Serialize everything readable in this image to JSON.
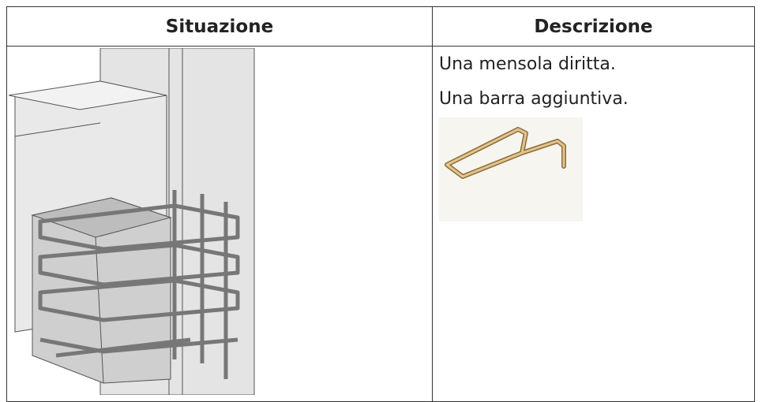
{
  "table": {
    "headers": [
      "Situazione",
      "Descrizione"
    ],
    "description": [
      "Una mensola diritta.",
      "Una barra aggiuntiva."
    ]
  }
}
